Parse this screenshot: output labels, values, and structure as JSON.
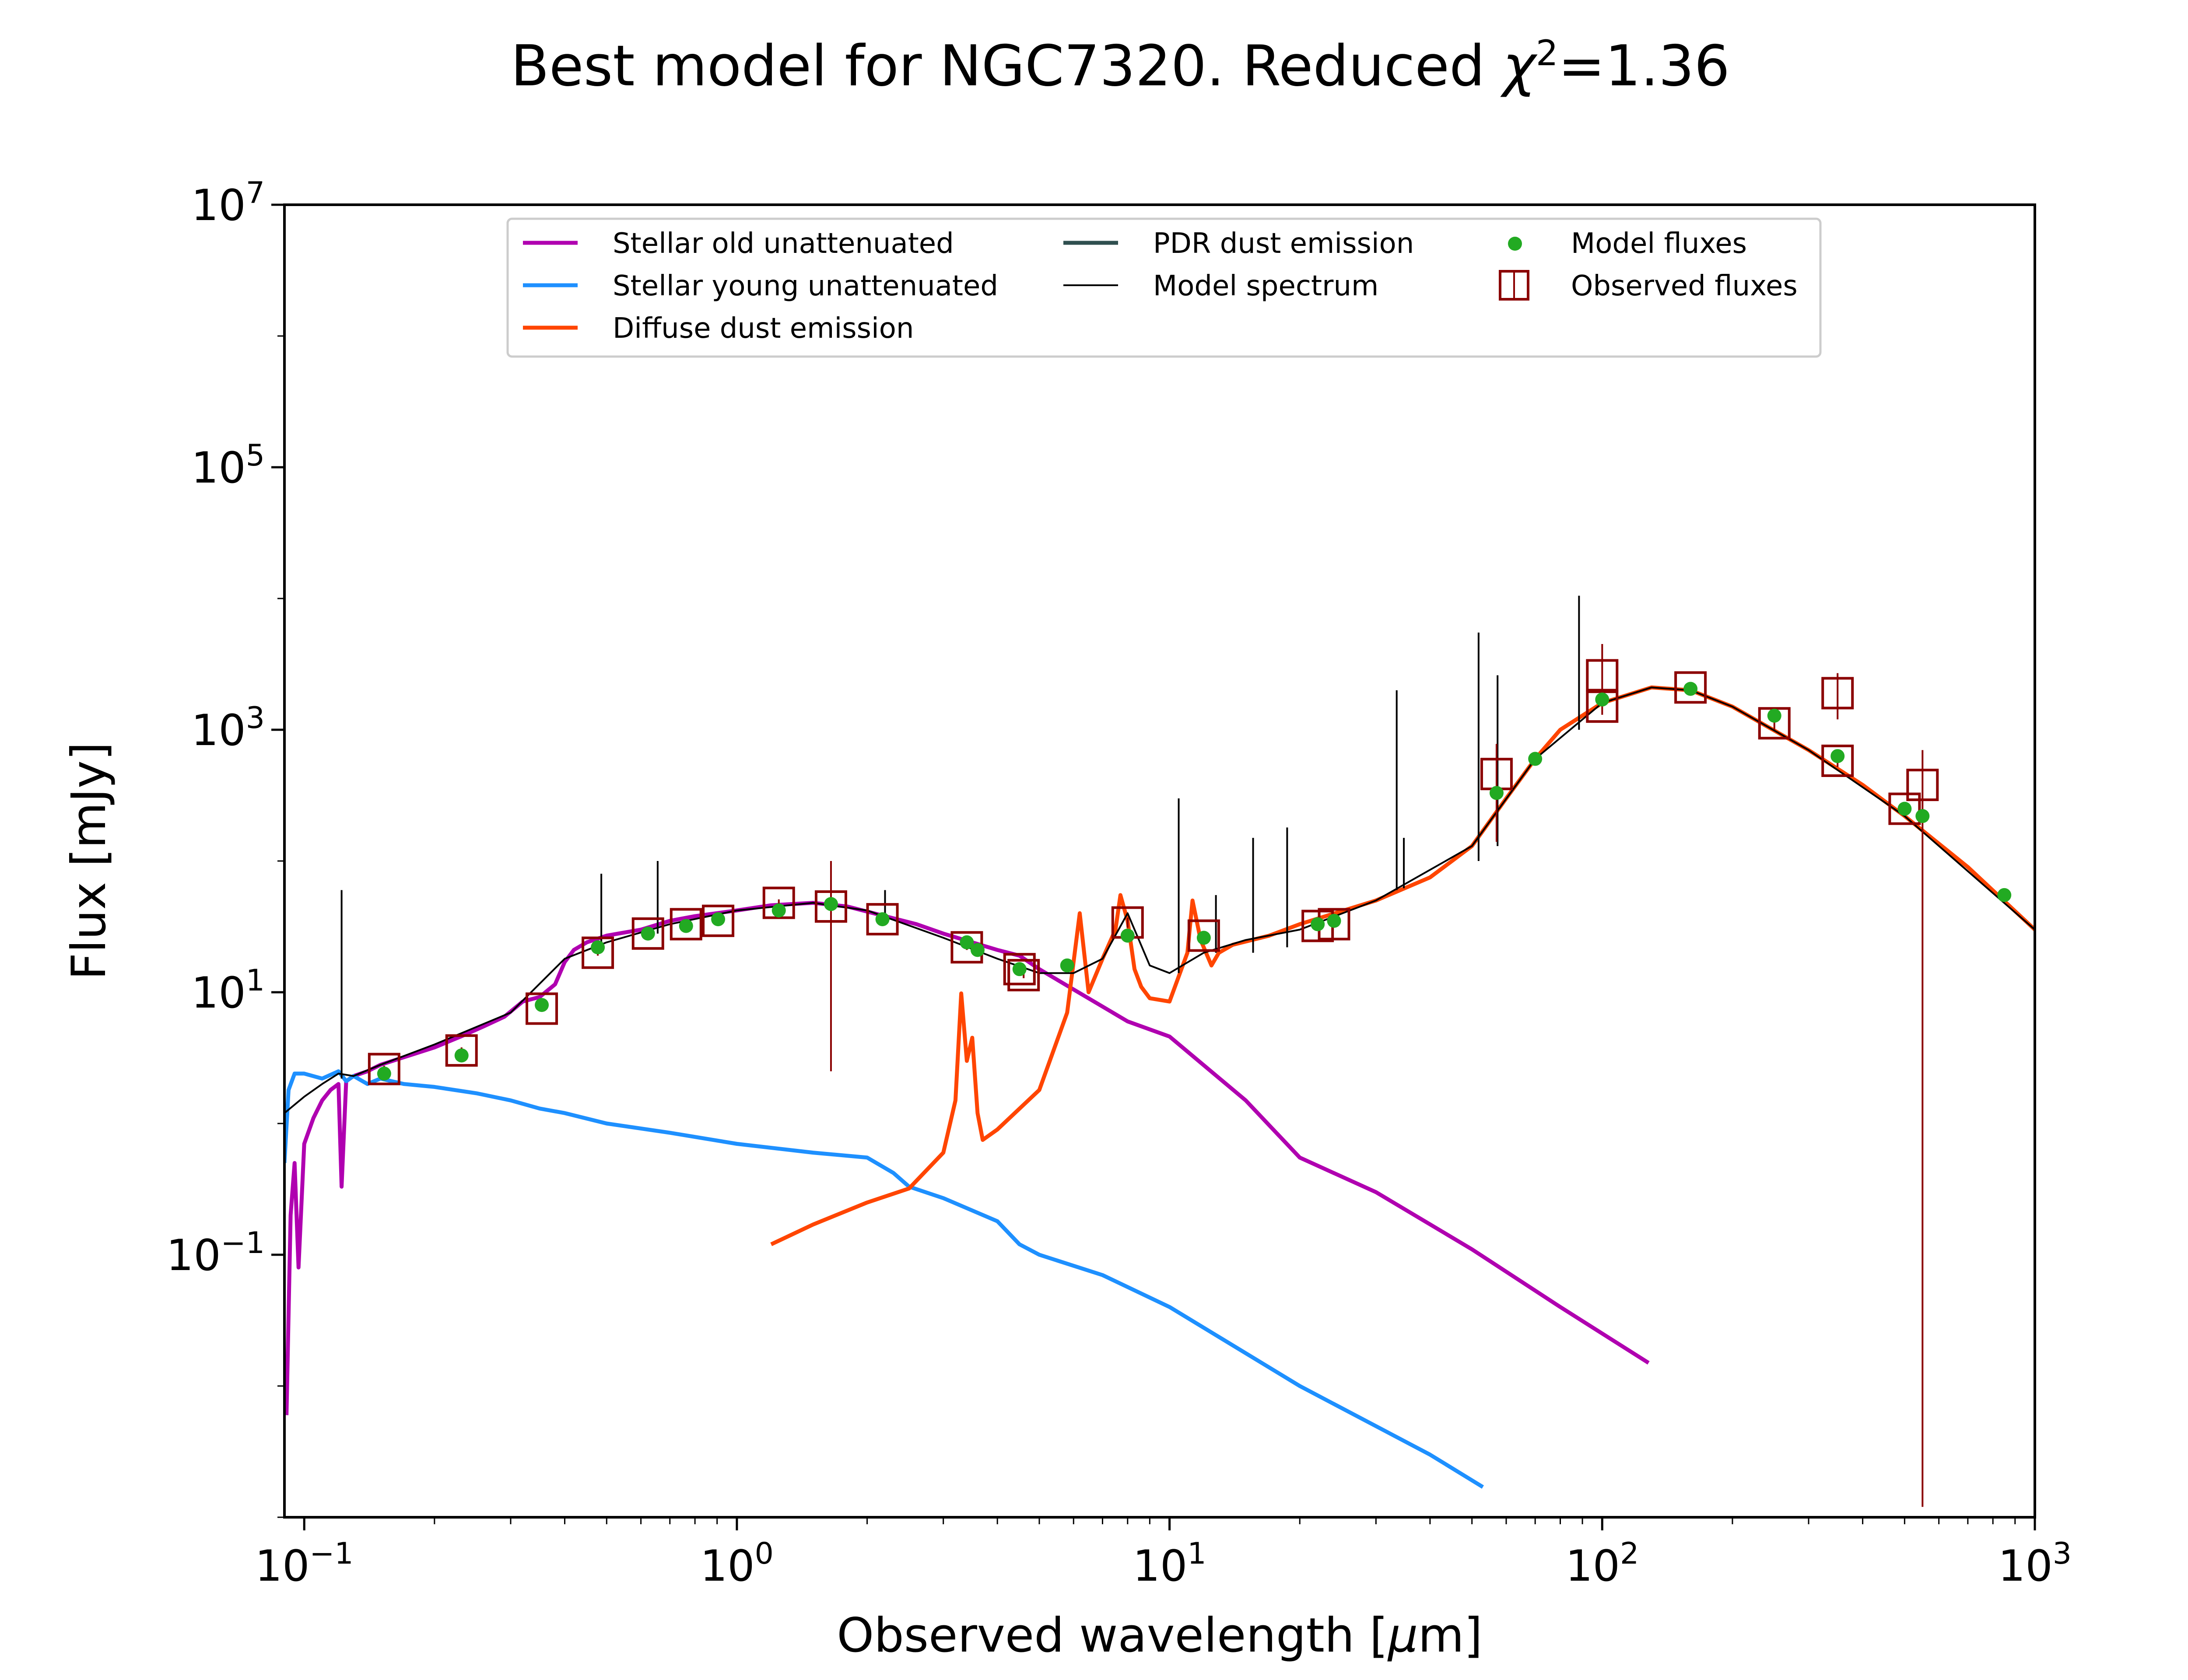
{
  "chart_data": {
    "type": "line",
    "title": "Best model for NGC7320. Reduced χ²=1.36",
    "title_parts": {
      "prefix": "Best model for NGC7320. Reduced ",
      "chi": "χ",
      "sup": "2",
      "suffix": "=1.36"
    },
    "xlabel": "Observed wavelength [μm]",
    "xlabel_parts": {
      "prefix": "Observed wavelength [",
      "mu": "μ",
      "suffix": "m]"
    },
    "ylabel": "Flux [mJy]",
    "xscale": "log",
    "yscale": "log",
    "xlim": [
      0.09,
      1000
    ],
    "ylim": [
      0.001,
      10000000
    ],
    "x_ticks": [
      {
        "value": 0.1,
        "label": "10",
        "exp": "−1"
      },
      {
        "value": 1,
        "label": "10",
        "exp": "0"
      },
      {
        "value": 10,
        "label": "10",
        "exp": "1"
      },
      {
        "value": 100,
        "label": "10",
        "exp": "2"
      },
      {
        "value": 1000,
        "label": "10",
        "exp": "3"
      }
    ],
    "y_ticks": [
      {
        "value": 0.1,
        "label": "10",
        "exp": "−1"
      },
      {
        "value": 10,
        "label": "10",
        "exp": "1"
      },
      {
        "value": 1000,
        "label": "10",
        "exp": "3"
      },
      {
        "value": 100000,
        "label": "10",
        "exp": "5"
      },
      {
        "value": 10000000,
        "label": "10",
        "exp": "7"
      }
    ],
    "grid": false,
    "legend_position": "top",
    "legend": [
      {
        "label": "Stellar old unattenuated",
        "kind": "line",
        "color": "#b000b0"
      },
      {
        "label": "Stellar young unattenuated",
        "kind": "line",
        "color": "#1e90ff"
      },
      {
        "label": "Diffuse dust emission",
        "kind": "line",
        "color": "#ff4500"
      },
      {
        "label": "PDR dust emission",
        "kind": "line",
        "color": "#2f4f4f"
      },
      {
        "label": "Model spectrum",
        "kind": "line",
        "color": "#000000"
      },
      {
        "label": "Model fluxes",
        "kind": "dot",
        "color": "#22aa22"
      },
      {
        "label": "Observed fluxes",
        "kind": "square",
        "color": "#8b0000"
      }
    ],
    "series": [
      {
        "name": "Stellar old unattenuated",
        "color": "#b000b0",
        "x": [
          0.091,
          0.093,
          0.095,
          0.097,
          0.1,
          0.105,
          0.11,
          0.115,
          0.12,
          0.122,
          0.125,
          0.13,
          0.14,
          0.15,
          0.17,
          0.2,
          0.23,
          0.26,
          0.29,
          0.32,
          0.35,
          0.38,
          0.4,
          0.42,
          0.45,
          0.5,
          0.6,
          0.7,
          0.8,
          1.0,
          1.2,
          1.5,
          1.8,
          2.2,
          2.6,
          3.0,
          3.5,
          4.0,
          4.5,
          5.0,
          6.0,
          8.0,
          10.0,
          15.0,
          20.0,
          30.0,
          50.0,
          80.0,
          128.0
        ],
        "y": [
          0.006,
          0.2,
          0.5,
          0.08,
          0.7,
          1.1,
          1.5,
          1.8,
          2.0,
          0.33,
          2.1,
          2.3,
          2.5,
          2.8,
          3.2,
          3.8,
          4.6,
          5.5,
          6.5,
          8.5,
          9.2,
          11.5,
          17,
          21,
          24,
          27,
          30,
          35,
          38,
          42,
          46,
          48,
          45,
          38,
          33,
          28,
          24,
          21,
          19,
          15,
          10.5,
          6.0,
          4.6,
          1.5,
          0.55,
          0.3,
          0.11,
          0.04,
          0.015
        ]
      },
      {
        "name": "Stellar young unattenuated",
        "color": "#1e90ff",
        "x": [
          0.09,
          0.092,
          0.095,
          0.1,
          0.11,
          0.12,
          0.125,
          0.13,
          0.14,
          0.15,
          0.17,
          0.2,
          0.25,
          0.3,
          0.35,
          0.4,
          0.5,
          0.7,
          1.0,
          1.5,
          2.0,
          2.3,
          2.5,
          3.0,
          4.0,
          4.5,
          5.0,
          7.0,
          10.0,
          20.0,
          40.0,
          53.0
        ],
        "y": [
          0.5,
          1.8,
          2.4,
          2.4,
          2.2,
          2.5,
          2.1,
          2.3,
          2.0,
          2.2,
          2.0,
          1.9,
          1.7,
          1.5,
          1.3,
          1.2,
          1.0,
          0.85,
          0.7,
          0.6,
          0.55,
          0.42,
          0.33,
          0.27,
          0.18,
          0.12,
          0.1,
          0.07,
          0.04,
          0.01,
          0.003,
          0.0017
        ]
      },
      {
        "name": "Diffuse dust emission",
        "color": "#ff4500",
        "x": [
          1.2,
          1.5,
          2.0,
          2.5,
          3.0,
          3.2,
          3.3,
          3.4,
          3.5,
          3.6,
          3.7,
          4.0,
          5.0,
          5.8,
          6.2,
          6.5,
          7.0,
          7.5,
          7.7,
          8.0,
          8.3,
          8.6,
          9.0,
          10.0,
          11.0,
          11.3,
          11.8,
          12.5,
          13.0,
          14.0,
          17.0,
          20.0,
          30.0,
          40.0,
          50.0,
          60.0,
          70.0,
          80.0,
          100.0,
          130.0,
          160.0,
          200.0,
          300.0,
          400.0,
          500.0,
          700.0,
          1000.0
        ],
        "y": [
          0.12,
          0.17,
          0.25,
          0.32,
          0.6,
          1.5,
          9.8,
          3.0,
          4.5,
          1.2,
          0.75,
          0.9,
          1.8,
          7.0,
          40.0,
          10.0,
          18.0,
          30.0,
          55.0,
          35.0,
          15.0,
          11.0,
          9.0,
          8.5,
          20.0,
          50.0,
          25.0,
          16.0,
          20.0,
          23.0,
          27.0,
          33.0,
          50.0,
          75.0,
          130.0,
          300.0,
          600.0,
          1000.0,
          1600.0,
          2100.0,
          2000.0,
          1500.0,
          700.0,
          380.0,
          220.0,
          90.0,
          30.0
        ]
      },
      {
        "name": "Model spectrum",
        "color": "#000000",
        "x": [
          0.09,
          0.1,
          0.11,
          0.12,
          0.13,
          0.15,
          0.2,
          0.3,
          0.4,
          0.5,
          0.7,
          1.0,
          1.5,
          2.0,
          3.0,
          4.0,
          5.0,
          6.0,
          7.0,
          8.0,
          9.0,
          10.0,
          12.0,
          15.0,
          20.0,
          30.0,
          50.0,
          70.0,
          100.0,
          130.0,
          160.0,
          200.0,
          300.0,
          500.0,
          1000.0
        ],
        "y": [
          1.2,
          1.6,
          2.0,
          2.4,
          2.3,
          2.8,
          4.0,
          7.0,
          18.0,
          24.0,
          33.0,
          42.0,
          48.0,
          42.0,
          26.0,
          18.0,
          14.0,
          14.0,
          18.0,
          40.0,
          16.0,
          14.0,
          20.0,
          25.0,
          30.0,
          50.0,
          130.0,
          600.0,
          1600.0,
          2100.0,
          2000.0,
          1500.0,
          700.0,
          220.0,
          30.0
        ]
      }
    ],
    "spectrum_lines": [
      {
        "x": 0.122,
        "y_low": 2.2,
        "y_high": 60
      },
      {
        "x": 0.486,
        "y_low": 22,
        "y_high": 80
      },
      {
        "x": 0.656,
        "y_low": 28,
        "y_high": 100
      },
      {
        "x": 2.2,
        "y_low": 40,
        "y_high": 60
      },
      {
        "x": 10.5,
        "y_low": 14,
        "y_high": 300
      },
      {
        "x": 12.8,
        "y_low": 20,
        "y_high": 55
      },
      {
        "x": 15.6,
        "y_low": 20,
        "y_high": 150
      },
      {
        "x": 18.7,
        "y_low": 22,
        "y_high": 180
      },
      {
        "x": 33.5,
        "y_low": 60,
        "y_high": 2000
      },
      {
        "x": 34.8,
        "y_low": 62,
        "y_high": 150
      },
      {
        "x": 51.8,
        "y_low": 100,
        "y_high": 5500
      },
      {
        "x": 57.3,
        "y_low": 130,
        "y_high": 2600
      },
      {
        "x": 88.4,
        "y_low": 1000,
        "y_high": 10500
      }
    ],
    "model_fluxes": {
      "x": [
        0.153,
        0.231,
        0.354,
        0.477,
        0.623,
        0.763,
        0.905,
        1.25,
        1.65,
        2.17,
        3.4,
        3.6,
        4.5,
        5.8,
        8.0,
        12.0,
        22.0,
        24.0,
        57.0,
        70.0,
        100.0,
        160.0,
        250.0,
        350.0,
        500.0,
        550.0,
        850.0
      ],
      "y": [
        2.4,
        3.3,
        8.0,
        22.0,
        28.0,
        32.0,
        36.0,
        42.0,
        47.0,
        36.0,
        24.0,
        21.0,
        15.0,
        16.0,
        27.0,
        26.0,
        33.0,
        35.0,
        330.0,
        600.0,
        1700.0,
        2050.0,
        1280.0,
        630.0,
        250.0,
        220.0,
        55.0
      ]
    },
    "observed_fluxes": {
      "x": [
        0.153,
        0.231,
        0.354,
        0.477,
        0.623,
        0.763,
        0.905,
        1.25,
        1.65,
        2.17,
        3.4,
        4.5,
        4.6,
        8.0,
        12.0,
        22.0,
        24.0,
        57.0,
        100.0,
        100.0,
        160.0,
        250.0,
        350.0,
        350.0,
        500.0,
        550.0
      ],
      "y": [
        2.6,
        3.6,
        7.5,
        20.0,
        28.0,
        33.0,
        35.0,
        48.0,
        45.0,
        36.0,
        22.0,
        15.0,
        13.5,
        34.0,
        27.0,
        32.0,
        33.0,
        460.0,
        2600.0,
        1500.0,
        2100.0,
        1120.0,
        580.0,
        1900.0,
        250.0,
        380.0
      ],
      "y_err_low": [
        2.45,
        3.4,
        7.1,
        19.0,
        26.5,
        31.0,
        33.0,
        45.0,
        2.5,
        34.0,
        21.0,
        14.0,
        12.8,
        31.0,
        25.0,
        30.0,
        31.0,
        140.0,
        1500.0,
        1300.0,
        1900.0,
        1000.0,
        520.0,
        1200.0,
        230.0,
        0.0012
      ],
      "y_err_high": [
        2.75,
        3.8,
        7.9,
        21.0,
        29.5,
        35.0,
        37.0,
        51.0,
        100.0,
        38.0,
        23.0,
        16.0,
        14.2,
        37.0,
        29.0,
        34.0,
        35.0,
        780.0,
        4500.0,
        1700.0,
        2300.0,
        1240.0,
        640.0,
        2700.0,
        270.0,
        700.0
      ]
    }
  }
}
